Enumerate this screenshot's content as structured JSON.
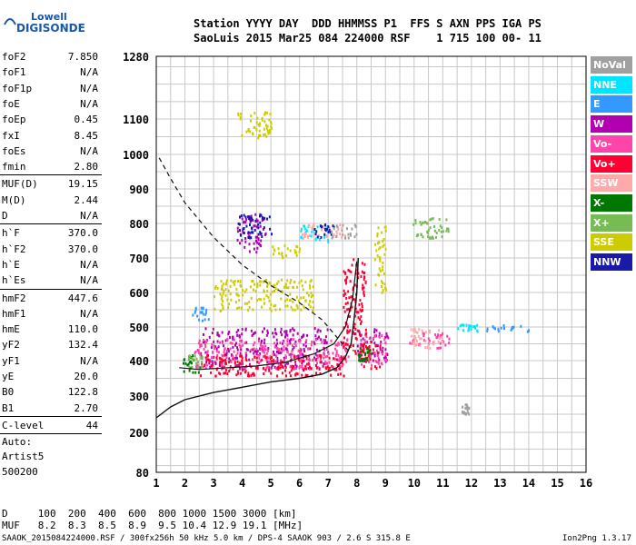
{
  "logo": {
    "line1": "Lowell",
    "line2": "DIGISONDE"
  },
  "header": {
    "row1": "Station YYYY DAY  DDD HHMMSS P1  FFS S AXN PPS IGA PS",
    "row2": "SaoLuis 2015 Mar25 084 224000 RSF    1 715 100 00- 11"
  },
  "params": [
    {
      "name": "foF2",
      "value": "7.850"
    },
    {
      "name": "foF1",
      "value": "N/A"
    },
    {
      "name": "foF1p",
      "value": "N/A"
    },
    {
      "name": "foE",
      "value": "N/A"
    },
    {
      "name": "foEp",
      "value": "0.45"
    },
    {
      "name": "fxI",
      "value": "8.45"
    },
    {
      "name": "foEs",
      "value": "N/A"
    },
    {
      "name": "fmin",
      "value": "2.80"
    },
    {
      "name": "MUF(D)",
      "value": "19.15"
    },
    {
      "name": "M(D)",
      "value": "2.44"
    },
    {
      "name": "D",
      "value": "N/A"
    },
    {
      "name": "h`F",
      "value": "370.0"
    },
    {
      "name": "h`F2",
      "value": "370.0"
    },
    {
      "name": "h`E",
      "value": "N/A"
    },
    {
      "name": "h`Es",
      "value": "N/A"
    },
    {
      "name": "hmF2",
      "value": "447.6"
    },
    {
      "name": "hmF1",
      "value": "N/A"
    },
    {
      "name": "hmE",
      "value": "110.0"
    },
    {
      "name": "yF2",
      "value": "132.4"
    },
    {
      "name": "yF1",
      "value": "N/A"
    },
    {
      "name": "yE",
      "value": "20.0"
    },
    {
      "name": "B0",
      "value": "122.8"
    },
    {
      "name": "B1",
      "value": "2.70"
    },
    {
      "name": "C-level",
      "value": "44"
    }
  ],
  "auto": {
    "line1": "Auto:",
    "line2": "Artist5",
    "line3": "500200"
  },
  "legend": [
    {
      "label": "NoVal",
      "color": "#a0a0a0"
    },
    {
      "label": "NNE",
      "color": "#00e5ff"
    },
    {
      "label": "E",
      "color": "#3399ff"
    },
    {
      "label": "W",
      "color": "#b000b0"
    },
    {
      "label": "Vo-",
      "color": "#ff44aa"
    },
    {
      "label": "Vo+",
      "color": "#ff0033"
    },
    {
      "label": "SSW",
      "color": "#ffaaaa"
    },
    {
      "label": "X-",
      "color": "#007700"
    },
    {
      "label": "X+",
      "color": "#77bb55"
    },
    {
      "label": "SSE",
      "color": "#cccc00"
    },
    {
      "label": "NNW",
      "color": "#1a1aaa"
    }
  ],
  "bottom": {
    "dist_row": "D     100  200  400  600  800 1000 1500 3000 [km]",
    "muf_row": "MUF   8.2  8.3  8.5  8.9  9.5 10.4 12.9 19.1 [MHz]",
    "footer": "SAAOK_2015084224000.RSF / 300fx256h 50 kHz 5.0 km / DPS-4 SAAOK 903 / 2.6 S 315.8 E",
    "version": "Ion2Png 1.3.17"
  },
  "chart_data": {
    "type": "scatter",
    "xlim": [
      1,
      16
    ],
    "ylim": [
      80,
      1280
    ],
    "x_ticks": [
      1,
      2,
      3,
      4,
      5,
      6,
      7,
      8,
      9,
      10,
      11,
      12,
      13,
      14,
      15,
      16
    ],
    "y_ticks": [
      80,
      200,
      300,
      400,
      500,
      600,
      700,
      800,
      900,
      1000,
      1100,
      1280
    ],
    "grid": true,
    "series": [
      {
        "name": "W",
        "clusters": [
          [
            3.8,
            4.8,
            720,
            830
          ],
          [
            2.5,
            7.0,
            380,
            500
          ],
          [
            8.0,
            9.1,
            400,
            500
          ]
        ]
      },
      {
        "name": "Vo-",
        "clusters": [
          [
            2.3,
            7.8,
            380,
            470
          ],
          [
            8.0,
            9.0,
            390,
            480
          ],
          [
            9.8,
            11.2,
            440,
            490
          ]
        ]
      },
      {
        "name": "Vo+",
        "clusters": [
          [
            2.5,
            7.6,
            360,
            420
          ],
          [
            7.5,
            8.3,
            420,
            700
          ],
          [
            8.1,
            8.8,
            380,
            460
          ]
        ]
      },
      {
        "name": "SSE",
        "clusters": [
          [
            3.0,
            6.5,
            550,
            640
          ],
          [
            3.8,
            5.0,
            1050,
            1130
          ],
          [
            5.0,
            6.0,
            700,
            740
          ],
          [
            8.6,
            9.0,
            600,
            800
          ]
        ]
      },
      {
        "name": "NNE",
        "clusters": [
          [
            6.0,
            7.0,
            750,
            800
          ],
          [
            11.5,
            12.2,
            490,
            510
          ]
        ]
      },
      {
        "name": "E",
        "clusters": [
          [
            2.2,
            2.8,
            520,
            560
          ],
          [
            12.5,
            14.0,
            490,
            510
          ]
        ]
      },
      {
        "name": "X-",
        "clusters": [
          [
            1.9,
            2.5,
            370,
            420
          ],
          [
            8.0,
            8.5,
            380,
            440
          ]
        ]
      },
      {
        "name": "X+",
        "clusters": [
          [
            9.8,
            11.2,
            760,
            820
          ],
          [
            2.1,
            2.6,
            380,
            420
          ]
        ]
      },
      {
        "name": "SSW",
        "clusters": [
          [
            6.0,
            7.6,
            760,
            800
          ],
          [
            9.8,
            11.0,
            440,
            500
          ]
        ]
      },
      {
        "name": "NNW",
        "clusters": [
          [
            3.8,
            5.0,
            760,
            830
          ],
          [
            6.5,
            7.2,
            760,
            800
          ]
        ]
      },
      {
        "name": "NoVal",
        "clusters": [
          [
            7.0,
            8.0,
            760,
            800
          ],
          [
            11.6,
            11.9,
            250,
            280
          ]
        ]
      }
    ],
    "profile_solid": [
      [
        1,
        240
      ],
      [
        1.5,
        270
      ],
      [
        2,
        290
      ],
      [
        3,
        310
      ],
      [
        4,
        325
      ],
      [
        5,
        340
      ],
      [
        6,
        350
      ],
      [
        6.8,
        362
      ],
      [
        7.3,
        380
      ],
      [
        7.6,
        410
      ],
      [
        7.8,
        450
      ],
      [
        7.9,
        520
      ],
      [
        8.0,
        600
      ],
      [
        8.05,
        700
      ]
    ],
    "profile_dashed": [
      [
        1.1,
        990
      ],
      [
        1.5,
        930
      ],
      [
        2,
        860
      ],
      [
        3,
        760
      ],
      [
        4,
        680
      ],
      [
        5,
        620
      ],
      [
        6,
        570
      ],
      [
        6.8,
        520
      ],
      [
        7.4,
        460
      ],
      [
        7.7,
        430
      ],
      [
        7.9,
        430
      ]
    ],
    "trace": [
      [
        1.8,
        380
      ],
      [
        2.5,
        375
      ],
      [
        3.5,
        380
      ],
      [
        4.5,
        385
      ],
      [
        5.5,
        395
      ],
      [
        6.5,
        420
      ],
      [
        7.2,
        450
      ],
      [
        7.6,
        500
      ],
      [
        7.85,
        580
      ],
      [
        8.0,
        690
      ]
    ]
  }
}
